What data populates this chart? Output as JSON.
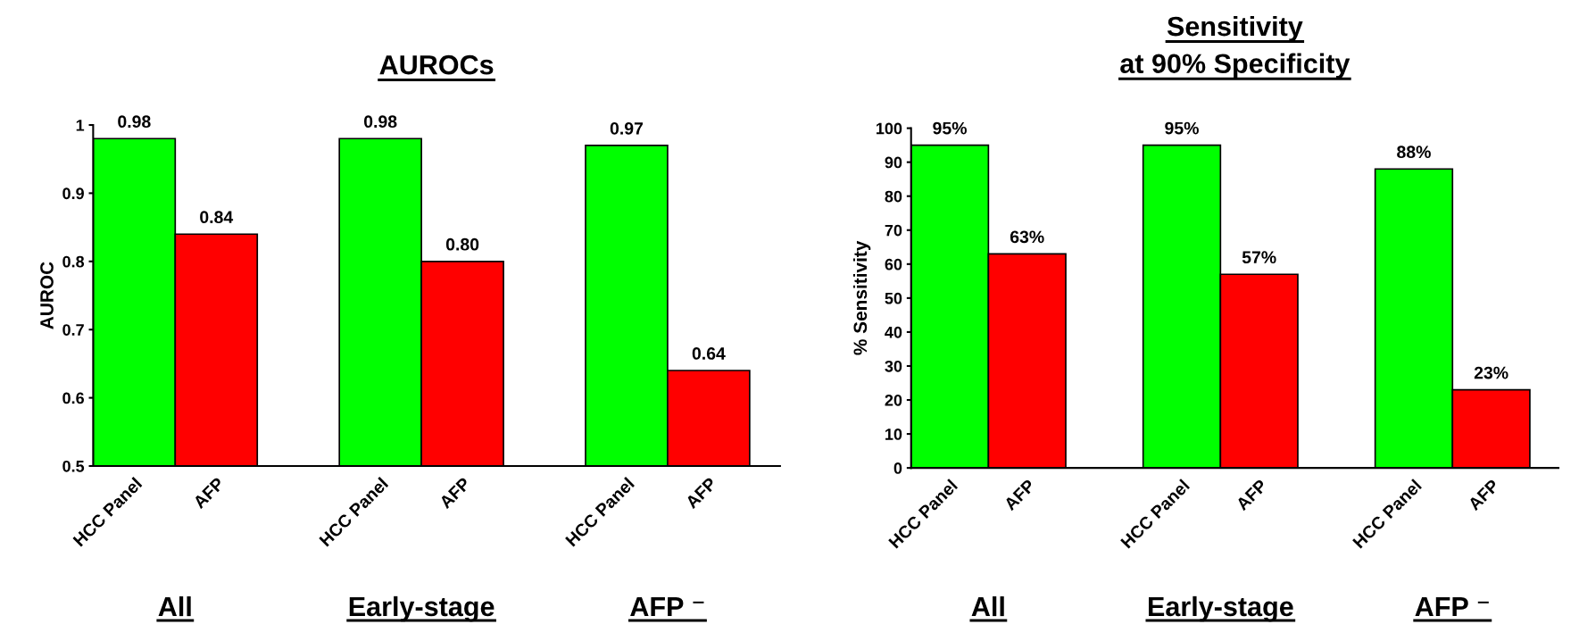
{
  "chart_data": [
    {
      "type": "bar",
      "title": "AUROCs",
      "ylabel": "AUROC",
      "categories": [
        "HCC Panel",
        "AFP",
        null,
        "HCC Panel",
        "AFP",
        null,
        "HCC Panel",
        "AFP"
      ],
      "values": [
        0.98,
        0.84,
        null,
        0.98,
        0.8,
        null,
        0.97,
        0.64
      ],
      "colors": [
        "#00ff00",
        "#ff0000",
        null,
        "#00ff00",
        "#ff0000",
        null,
        "#00ff00",
        "#ff0000"
      ],
      "value_labels": [
        "0.98",
        "0.84",
        null,
        "0.98",
        "0.80",
        null,
        "0.97",
        "0.64"
      ],
      "ylim": [
        0.5,
        1
      ],
      "yticks": [
        0.5,
        0.6,
        0.7,
        0.8,
        0.9,
        1
      ],
      "annotations": [
        "All",
        "Early-stage",
        "AFP ⁻"
      ],
      "grid": false,
      "legend": false
    },
    {
      "type": "bar",
      "title": "Sensitivity\nat 90% Specificity",
      "ylabel": "% Sensitivity",
      "categories": [
        "HCC Panel",
        "AFP",
        null,
        "HCC Panel",
        "AFP",
        null,
        "HCC Panel",
        "AFP"
      ],
      "values": [
        95,
        63,
        null,
        95,
        57,
        null,
        88,
        23
      ],
      "colors": [
        "#00ff00",
        "#ff0000",
        null,
        "#00ff00",
        "#ff0000",
        null,
        "#00ff00",
        "#ff0000"
      ],
      "value_labels": [
        "95%",
        "63%",
        null,
        "95%",
        "57%",
        null,
        "88%",
        "23%"
      ],
      "ylim": [
        0,
        100
      ],
      "yticks": [
        0,
        10,
        20,
        30,
        40,
        50,
        60,
        70,
        80,
        90,
        100
      ],
      "annotations": [
        "All",
        "Early-stage",
        "AFP ⁻"
      ],
      "grid": false,
      "legend": false
    }
  ]
}
